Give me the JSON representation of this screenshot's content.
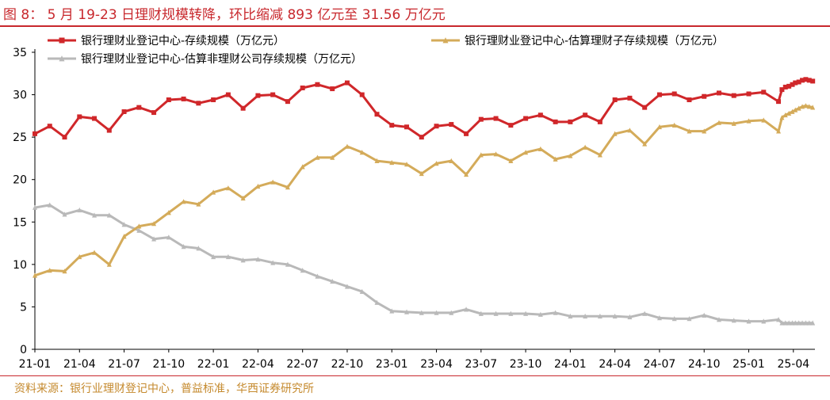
{
  "figure": {
    "title": "图 8： 5 月 19-23 日理财规模转降，环比缩减 893 亿元至 31.56 万亿元",
    "source": "资料来源：银行业理财登记中心，普益标准，华西证券研究所"
  },
  "colors": {
    "title": "#c8282d",
    "source": "#c58a2e",
    "series": [
      "#d0272a",
      "#d4ab5a",
      "#b9b9b9"
    ]
  },
  "chart_data": {
    "type": "line",
    "ylim": [
      0,
      35
    ],
    "yticks": [
      0,
      5,
      10,
      15,
      20,
      25,
      30,
      35
    ],
    "x_range": [
      "2021-01",
      "2025-05"
    ],
    "xtick_labels": [
      "21-01",
      "21-04",
      "21-07",
      "21-10",
      "22-01",
      "22-04",
      "22-07",
      "22-10",
      "23-01",
      "23-04",
      "23-07",
      "23-10",
      "24-01",
      "24-04",
      "24-07",
      "24-10",
      "25-01",
      "25-04"
    ],
    "legend_placement": "top",
    "grid": false,
    "series": [
      {
        "name": "银行理财业登记中心-存续规模（万亿元）",
        "marker": "square",
        "points": [
          [
            "2021-01",
            25.4
          ],
          [
            "2021-02",
            26.3
          ],
          [
            "2021-03",
            25.0
          ],
          [
            "2021-04",
            27.4
          ],
          [
            "2021-05",
            27.2
          ],
          [
            "2021-06",
            25.8
          ],
          [
            "2021-07",
            28.0
          ],
          [
            "2021-08",
            28.5
          ],
          [
            "2021-09",
            27.9
          ],
          [
            "2021-10",
            29.4
          ],
          [
            "2021-11",
            29.5
          ],
          [
            "2021-12",
            29.0
          ],
          [
            "2022-01",
            29.4
          ],
          [
            "2022-02",
            30.0
          ],
          [
            "2022-03",
            28.4
          ],
          [
            "2022-04",
            29.9
          ],
          [
            "2022-05",
            30.0
          ],
          [
            "2022-06",
            29.2
          ],
          [
            "2022-07",
            30.8
          ],
          [
            "2022-08",
            31.2
          ],
          [
            "2022-09",
            30.7
          ],
          [
            "2022-10",
            31.4
          ],
          [
            "2022-11",
            30.0
          ],
          [
            "2022-12",
            27.7
          ],
          [
            "2023-01",
            26.4
          ],
          [
            "2023-02",
            26.2
          ],
          [
            "2023-03",
            25.0
          ],
          [
            "2023-04",
            26.3
          ],
          [
            "2023-05",
            26.5
          ],
          [
            "2023-06",
            25.4
          ],
          [
            "2023-07",
            27.1
          ],
          [
            "2023-08",
            27.2
          ],
          [
            "2023-09",
            26.4
          ],
          [
            "2023-10",
            27.2
          ],
          [
            "2023-11",
            27.6
          ],
          [
            "2023-12",
            26.8
          ],
          [
            "2024-01",
            26.8
          ],
          [
            "2024-02",
            27.6
          ],
          [
            "2024-03",
            26.8
          ],
          [
            "2024-04",
            29.4
          ],
          [
            "2024-05",
            29.6
          ],
          [
            "2024-06",
            28.5
          ],
          [
            "2024-07",
            30.0
          ],
          [
            "2024-08",
            30.1
          ],
          [
            "2024-09",
            29.4
          ],
          [
            "2024-10",
            29.8
          ],
          [
            "2024-11",
            30.2
          ],
          [
            "2024-12",
            29.9
          ],
          [
            "2025-01",
            30.1
          ],
          [
            "2025-02",
            30.3
          ],
          [
            "2025-03",
            29.2
          ],
          [
            "2025-03-08",
            30.6
          ],
          [
            "2025-03-15",
            30.9
          ],
          [
            "2025-03-22",
            31.0
          ],
          [
            "2025-03-29",
            31.2
          ],
          [
            "2025-04-05",
            31.4
          ],
          [
            "2025-04-12",
            31.5
          ],
          [
            "2025-04-19",
            31.7
          ],
          [
            "2025-04-26",
            31.8
          ],
          [
            "2025-05-03",
            31.7
          ],
          [
            "2025-05-10",
            31.6
          ]
        ]
      },
      {
        "name": "银行理财业登记中心-估算理财子存续规模（万亿元）",
        "marker": "triangle",
        "points": [
          [
            "2021-01",
            8.7
          ],
          [
            "2021-02",
            9.3
          ],
          [
            "2021-03",
            9.2
          ],
          [
            "2021-04",
            10.9
          ],
          [
            "2021-05",
            11.4
          ],
          [
            "2021-06",
            10.0
          ],
          [
            "2021-07",
            13.3
          ],
          [
            "2021-08",
            14.5
          ],
          [
            "2021-09",
            14.8
          ],
          [
            "2021-10",
            16.1
          ],
          [
            "2021-11",
            17.4
          ],
          [
            "2021-12",
            17.1
          ],
          [
            "2022-01",
            18.5
          ],
          [
            "2022-02",
            19.0
          ],
          [
            "2022-03",
            17.8
          ],
          [
            "2022-04",
            19.2
          ],
          [
            "2022-05",
            19.7
          ],
          [
            "2022-06",
            19.1
          ],
          [
            "2022-07",
            21.5
          ],
          [
            "2022-08",
            22.6
          ],
          [
            "2022-09",
            22.6
          ],
          [
            "2022-10",
            23.9
          ],
          [
            "2022-11",
            23.2
          ],
          [
            "2022-12",
            22.2
          ],
          [
            "2023-01",
            22.0
          ],
          [
            "2023-02",
            21.8
          ],
          [
            "2023-03",
            20.7
          ],
          [
            "2023-04",
            21.9
          ],
          [
            "2023-05",
            22.2
          ],
          [
            "2023-06",
            20.6
          ],
          [
            "2023-07",
            22.9
          ],
          [
            "2023-08",
            23.0
          ],
          [
            "2023-09",
            22.2
          ],
          [
            "2023-10",
            23.2
          ],
          [
            "2023-11",
            23.6
          ],
          [
            "2023-12",
            22.4
          ],
          [
            "2024-01",
            22.8
          ],
          [
            "2024-02",
            23.8
          ],
          [
            "2024-03",
            22.9
          ],
          [
            "2024-04",
            25.4
          ],
          [
            "2024-05",
            25.8
          ],
          [
            "2024-06",
            24.2
          ],
          [
            "2024-07",
            26.2
          ],
          [
            "2024-08",
            26.4
          ],
          [
            "2024-09",
            25.7
          ],
          [
            "2024-10",
            25.7
          ],
          [
            "2024-11",
            26.7
          ],
          [
            "2024-12",
            26.6
          ],
          [
            "2025-01",
            26.9
          ],
          [
            "2025-02",
            27.0
          ],
          [
            "2025-03",
            25.7
          ],
          [
            "2025-03-08",
            27.3
          ],
          [
            "2025-03-15",
            27.6
          ],
          [
            "2025-03-22",
            27.8
          ],
          [
            "2025-03-29",
            28.0
          ],
          [
            "2025-04-05",
            28.2
          ],
          [
            "2025-04-12",
            28.4
          ],
          [
            "2025-04-19",
            28.6
          ],
          [
            "2025-04-26",
            28.7
          ],
          [
            "2025-05-03",
            28.6
          ],
          [
            "2025-05-10",
            28.5
          ]
        ]
      },
      {
        "name": "银行理财业登记中心-估算非理财公司存续规模（万亿元）",
        "marker": "triangle",
        "points": [
          [
            "2021-01",
            16.7
          ],
          [
            "2021-02",
            17.0
          ],
          [
            "2021-03",
            15.9
          ],
          [
            "2021-04",
            16.4
          ],
          [
            "2021-05",
            15.8
          ],
          [
            "2021-06",
            15.8
          ],
          [
            "2021-07",
            14.7
          ],
          [
            "2021-08",
            14.0
          ],
          [
            "2021-09",
            13.0
          ],
          [
            "2021-10",
            13.2
          ],
          [
            "2021-11",
            12.1
          ],
          [
            "2021-12",
            11.9
          ],
          [
            "2022-01",
            10.9
          ],
          [
            "2022-02",
            10.9
          ],
          [
            "2022-03",
            10.5
          ],
          [
            "2022-04",
            10.6
          ],
          [
            "2022-05",
            10.2
          ],
          [
            "2022-06",
            10.0
          ],
          [
            "2022-07",
            9.3
          ],
          [
            "2022-08",
            8.6
          ],
          [
            "2022-09",
            8.0
          ],
          [
            "2022-10",
            7.4
          ],
          [
            "2022-11",
            6.8
          ],
          [
            "2022-12",
            5.5
          ],
          [
            "2023-01",
            4.5
          ],
          [
            "2023-02",
            4.4
          ],
          [
            "2023-03",
            4.3
          ],
          [
            "2023-04",
            4.3
          ],
          [
            "2023-05",
            4.3
          ],
          [
            "2023-06",
            4.7
          ],
          [
            "2023-07",
            4.2
          ],
          [
            "2023-08",
            4.2
          ],
          [
            "2023-09",
            4.2
          ],
          [
            "2023-10",
            4.2
          ],
          [
            "2023-11",
            4.1
          ],
          [
            "2023-12",
            4.3
          ],
          [
            "2024-01",
            3.9
          ],
          [
            "2024-02",
            3.9
          ],
          [
            "2024-03",
            3.9
          ],
          [
            "2024-04",
            3.9
          ],
          [
            "2024-05",
            3.8
          ],
          [
            "2024-06",
            4.2
          ],
          [
            "2024-07",
            3.7
          ],
          [
            "2024-08",
            3.6
          ],
          [
            "2024-09",
            3.6
          ],
          [
            "2024-10",
            4.0
          ],
          [
            "2024-11",
            3.5
          ],
          [
            "2024-12",
            3.4
          ],
          [
            "2025-01",
            3.3
          ],
          [
            "2025-02",
            3.3
          ],
          [
            "2025-03",
            3.5
          ],
          [
            "2025-03-08",
            3.1
          ],
          [
            "2025-03-15",
            3.1
          ],
          [
            "2025-03-22",
            3.1
          ],
          [
            "2025-03-29",
            3.1
          ],
          [
            "2025-04-05",
            3.1
          ],
          [
            "2025-04-12",
            3.1
          ],
          [
            "2025-04-19",
            3.1
          ],
          [
            "2025-04-26",
            3.1
          ],
          [
            "2025-05-03",
            3.1
          ],
          [
            "2025-05-10",
            3.1
          ]
        ]
      }
    ]
  }
}
